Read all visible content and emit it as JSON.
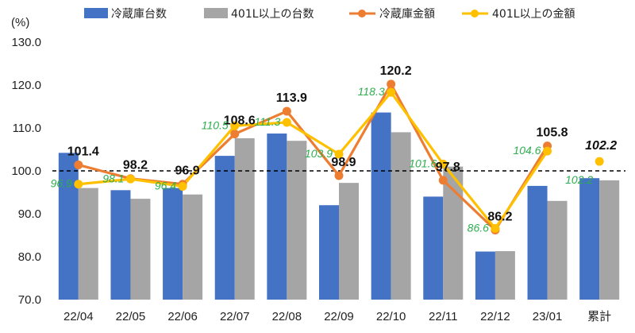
{
  "colors": {
    "bar1": "#4472c4",
    "bar2": "#a5a5a5",
    "line1": "#ed7d31",
    "line2": "#ffc000",
    "green_label": "#2eae4e",
    "reference_line": "#000000"
  },
  "chart_data": {
    "type": "bar",
    "unit_label": "(%)",
    "categories": [
      "22/04",
      "22/05",
      "22/06",
      "22/07",
      "22/08",
      "22/09",
      "22/10",
      "22/11",
      "22/12",
      "23/01",
      "累計"
    ],
    "ylim": [
      70.0,
      130.0
    ],
    "yticks": [
      "70.0",
      "80.0",
      "90.0",
      "100.0",
      "110.0",
      "120.0",
      "130.0"
    ],
    "reference_line": 100,
    "series": [
      {
        "name": "冷蔵庫台数",
        "kind": "bar",
        "values": [
          104.2,
          95.5,
          96.0,
          103.5,
          108.7,
          92.0,
          113.6,
          94.0,
          81.2,
          96.5,
          98.3
        ]
      },
      {
        "name": "401L以上の台数",
        "kind": "bar",
        "values": [
          96.0,
          93.5,
          94.5,
          107.6,
          107.0,
          97.2,
          109.0,
          101.0,
          81.3,
          93.0,
          97.8
        ]
      },
      {
        "name": "冷蔵庫金額",
        "kind": "line",
        "values": [
          101.4,
          98.2,
          96.9,
          108.6,
          113.9,
          98.9,
          120.2,
          97.8,
          86.2,
          105.8,
          null
        ],
        "labels": [
          "101.4",
          "98.2",
          "96.9",
          "108.6",
          "113.9",
          "98.9",
          "120.2",
          "97.8",
          "86.2",
          "105.8",
          ""
        ]
      },
      {
        "name": "401L以上の金額",
        "kind": "line",
        "values": [
          96.9,
          98.1,
          96.4,
          110.5,
          111.3,
          103.9,
          118.3,
          101.6,
          86.6,
          104.6,
          102.2
        ],
        "labels": [
          "96.9",
          "98.1",
          "96.4",
          "110.5",
          "111.3",
          "103.9",
          "118.3",
          "101.6",
          "86.6",
          "104.6",
          "102.2"
        ],
        "connect_last": false
      }
    ],
    "extra_labels": [
      "102.2"
    ]
  }
}
